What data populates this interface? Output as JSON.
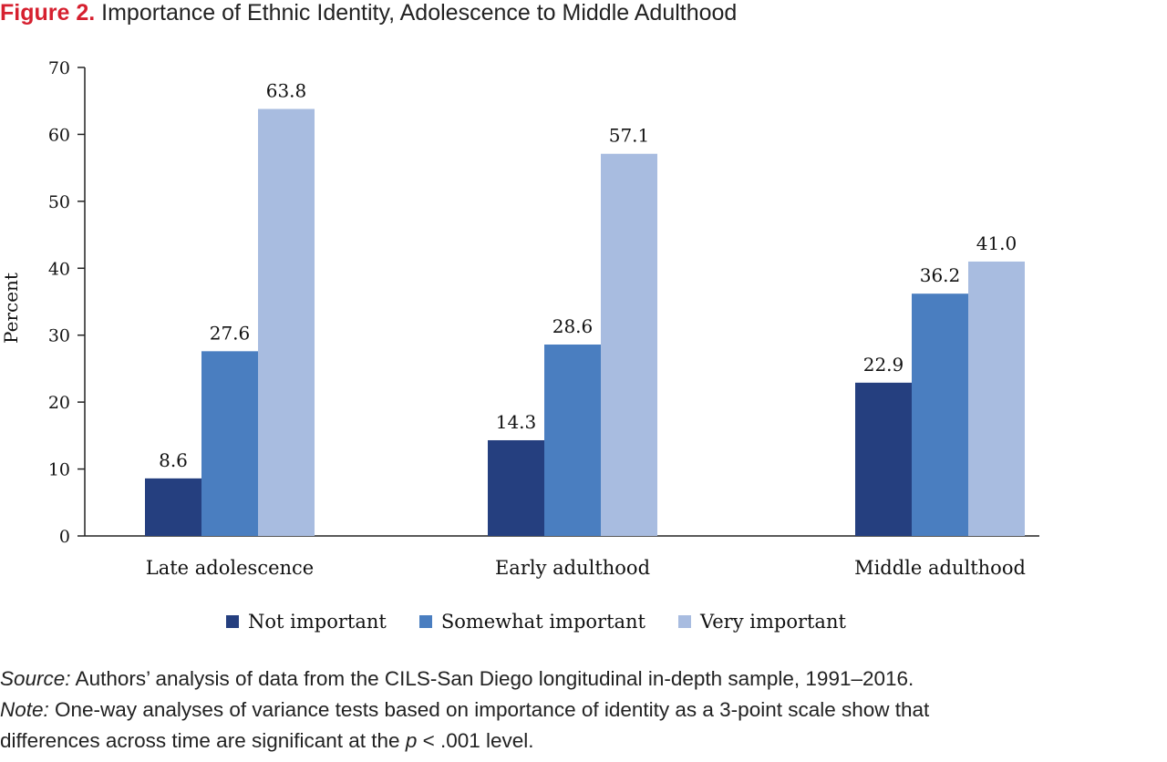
{
  "figure": {
    "label": "Figure 2.",
    "title": "Importance of Ethnic Identity, Adolescence to Middle Adulthood"
  },
  "chart_data": {
    "type": "bar",
    "title": "Importance of Ethnic Identity, Adolescence to Middle Adulthood",
    "xlabel": "",
    "ylabel": "Percent",
    "ylim": [
      0,
      70
    ],
    "yticks": [
      0,
      10,
      20,
      30,
      40,
      50,
      60,
      70
    ],
    "grid": false,
    "legend_position": "bottom",
    "categories": [
      "Late adolescence",
      "Early adulthood",
      "Middle adulthood"
    ],
    "series": [
      {
        "name": "Not important",
        "color": "#253f7f",
        "values": [
          8.6,
          14.3,
          22.9
        ],
        "labels": [
          "8.6",
          "14.3",
          "22.9"
        ]
      },
      {
        "name": "Somewhat important",
        "color": "#4a7ec0",
        "values": [
          27.6,
          28.6,
          36.2
        ],
        "labels": [
          "27.6",
          "28.6",
          "36.2"
        ]
      },
      {
        "name": "Very important",
        "color": "#a8bce0",
        "values": [
          63.8,
          57.1,
          41.0
        ],
        "labels": [
          "63.8",
          "57.1",
          "41.0"
        ]
      }
    ]
  },
  "notes": {
    "source_label": "Source:",
    "source_text": " Authors’ analysis of data from the CILS-San Diego longitudinal in-depth sample, 1991–2016.",
    "note_label": "Note:",
    "note_line1": " One-way analyses of variance tests based on importance of identity as a 3-point scale show that",
    "note_line2_a": "differences across time are significant at the ",
    "note_p": "p",
    "note_line2_b": " < .001 level."
  }
}
